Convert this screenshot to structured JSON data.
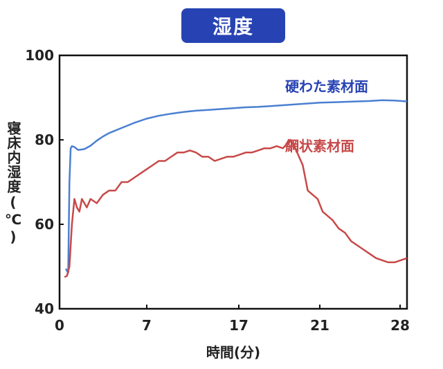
{
  "title": "湿度",
  "chart_data": {
    "type": "line",
    "title": "湿度",
    "xlabel": "時間(分)",
    "ylabel": "寝床内湿度(℃)",
    "x_ticks": [
      "0",
      "7",
      "17",
      "21",
      "28"
    ],
    "y_ticks": [
      100,
      80,
      60,
      40
    ],
    "xlim": [
      0,
      28
    ],
    "ylim": [
      40,
      100
    ],
    "grid": false,
    "series": [
      {
        "name": "硬わた素材面",
        "color": "#4a7fd0",
        "x": [
          0.5,
          0.7,
          0.8,
          0.9,
          1.0,
          1.2,
          1.5,
          2.0,
          2.5,
          3.0,
          3.5,
          4.0,
          5.0,
          6.0,
          7.0,
          8.0,
          9.0,
          10.0,
          11.0,
          12.0,
          13.0,
          14.0,
          15.0,
          16.0,
          17.0,
          18.0,
          19.0,
          20.0,
          21.0,
          22.0,
          23.0,
          24.0,
          25.0,
          26.0,
          27.0,
          28.0
        ],
        "y": [
          49.5,
          48.5,
          70,
          78,
          78.5,
          78.3,
          77.6,
          77.8,
          78.6,
          79.8,
          80.8,
          81.6,
          82.8,
          84.0,
          85.0,
          85.7,
          86.2,
          86.6,
          86.9,
          87.1,
          87.3,
          87.5,
          87.7,
          87.8,
          88.0,
          88.2,
          88.4,
          88.6,
          88.8,
          88.9,
          89.0,
          89.1,
          89.2,
          89.4,
          89.3,
          89.1
        ]
      },
      {
        "name": "網状素材面",
        "color": "#c84848",
        "x": [
          0.4,
          0.6,
          0.8,
          1.0,
          1.2,
          1.4,
          1.6,
          1.8,
          2.0,
          2.2,
          2.5,
          3.0,
          3.5,
          4.0,
          4.5,
          5.0,
          5.5,
          6.0,
          6.5,
          7.0,
          7.5,
          8.0,
          8.5,
          9.0,
          9.5,
          10.0,
          10.5,
          11.0,
          11.5,
          12.0,
          12.5,
          13.0,
          13.5,
          14.0,
          14.5,
          15.0,
          15.5,
          16.0,
          16.5,
          17.0,
          17.5,
          18.0,
          18.3,
          18.6,
          19.0,
          19.3,
          19.6,
          20.0,
          20.4,
          20.8,
          21.2,
          21.6,
          22.0,
          22.5,
          23.0,
          23.5,
          24.0,
          24.5,
          25.0,
          25.5,
          26.0,
          26.5,
          27.0,
          27.5,
          28.0
        ],
        "y": [
          47.5,
          47.8,
          50,
          60,
          66,
          64,
          63,
          66,
          65,
          64,
          66,
          65,
          67,
          68,
          68,
          70,
          70,
          71,
          72,
          73,
          74,
          75,
          75,
          76,
          77,
          77,
          77.5,
          77,
          76,
          76,
          75,
          75.5,
          76,
          76,
          76.5,
          77,
          77,
          77.5,
          78,
          78,
          78.5,
          78,
          79,
          80,
          78,
          76,
          74,
          68,
          67,
          66,
          63,
          62,
          61,
          59,
          58,
          56,
          55,
          54,
          53,
          52,
          51.5,
          51,
          51,
          51.5,
          52
        ]
      }
    ]
  }
}
